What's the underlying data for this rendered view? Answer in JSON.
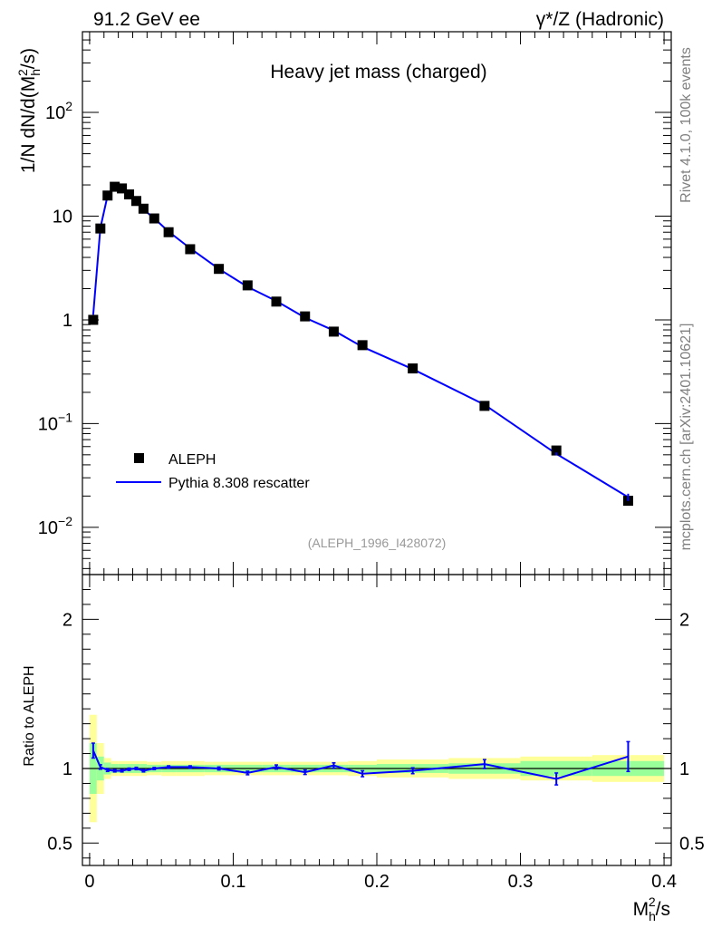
{
  "header": {
    "left": "91.2 GeV ee",
    "right_prefix": "γ*/Z",
    "right_suffix": " (Hadronic)"
  },
  "side_labels": {
    "rivet": "Rivet 4.1.0,  100k events",
    "source": "mcplots.cern.ch [arXiv:2401.10621]"
  },
  "colors": {
    "data": "#000000",
    "mc": "#0000ff",
    "band_inner": "#99ff99",
    "band_outer": "#ffff99",
    "watermark": "#999999",
    "side_text": "#808080"
  },
  "chart_data": {
    "type": "line",
    "title": "Heavy jet mass (charged)",
    "analysis_tag": "(ALEPH_1996_I428072)",
    "ylabel": "1/N  dN/d(M_h^2/s)",
    "ylabel_parts": {
      "prefix": "1/N   dN/d(M",
      "sub": "h",
      "sup": "2",
      "suffix": "/s)"
    },
    "xlabel": "M_h^2/s",
    "xlabel_parts": {
      "base": "M",
      "sub": "h",
      "sup": "2",
      "suffix": "/s"
    },
    "xlim": [
      -0.005,
      0.405
    ],
    "ylim_main": [
      0.0035,
      600
    ],
    "y_scale_main": "log",
    "ylim_ratio": [
      0.35,
      2.3
    ],
    "ratio_ylabel": "Ratio to ALEPH",
    "x_ticks": [
      0,
      0.1,
      0.2,
      0.3,
      0.4
    ],
    "x_tick_labels": [
      "0",
      "0.1",
      "0.2",
      "0.3",
      "0.4"
    ],
    "y_ticks_main": [
      {
        "value": 0.01,
        "base": "10",
        "exp": "−2"
      },
      {
        "value": 0.1,
        "base": "10",
        "exp": "−1"
      },
      {
        "value": 1,
        "base": "1",
        "exp": ""
      },
      {
        "value": 10,
        "base": "10",
        "exp": ""
      },
      {
        "value": 100,
        "base": "10",
        "exp": "2"
      }
    ],
    "y_ticks_ratio": [
      {
        "value": 0.5,
        "label": "0.5"
      },
      {
        "value": 1,
        "label": "1"
      },
      {
        "value": 2,
        "label": "2"
      }
    ],
    "legend": [
      {
        "label": "ALEPH",
        "marker": "square"
      },
      {
        "label": "Pythia 8.308 rescatter",
        "marker": "line"
      }
    ],
    "x": [
      0.0025,
      0.0075,
      0.0125,
      0.0175,
      0.0225,
      0.0275,
      0.0325,
      0.0375,
      0.045,
      0.055,
      0.07,
      0.09,
      0.11,
      0.13,
      0.15,
      0.17,
      0.19,
      0.225,
      0.275,
      0.325,
      0.375
    ],
    "x_lo": [
      0.0,
      0.005,
      0.01,
      0.015,
      0.02,
      0.025,
      0.03,
      0.035,
      0.04,
      0.05,
      0.06,
      0.08,
      0.1,
      0.12,
      0.14,
      0.16,
      0.18,
      0.2,
      0.25,
      0.3,
      0.35
    ],
    "x_hi": [
      0.005,
      0.01,
      0.015,
      0.02,
      0.025,
      0.03,
      0.035,
      0.04,
      0.05,
      0.06,
      0.08,
      0.1,
      0.12,
      0.14,
      0.16,
      0.18,
      0.2,
      0.25,
      0.3,
      0.35,
      0.4
    ],
    "series": [
      {
        "name": "ALEPH",
        "values": [
          1.0,
          7.6,
          15.8,
          19.2,
          18.5,
          16.2,
          14.0,
          11.8,
          9.5,
          7.0,
          4.8,
          3.1,
          2.15,
          1.5,
          1.08,
          0.77,
          0.57,
          0.34,
          0.148,
          0.055,
          0.018
        ]
      },
      {
        "name": "Pythia 8.308 rescatter",
        "values": [
          1.12,
          7.7,
          15.7,
          18.9,
          18.2,
          16.1,
          14.0,
          11.6,
          9.5,
          7.1,
          4.9,
          3.1,
          2.08,
          1.52,
          1.05,
          0.79,
          0.55,
          0.335,
          0.152,
          0.051,
          0.0195
        ],
        "ratio": [
          1.12,
          1.01,
          0.99,
          0.985,
          0.985,
          0.995,
          1.0,
          0.985,
          1.0,
          1.01,
          1.01,
          1.0,
          0.97,
          1.01,
          0.975,
          1.02,
          0.965,
          0.985,
          1.03,
          0.93,
          1.08
        ],
        "ratio_err": [
          0.05,
          0.015,
          0.01,
          0.008,
          0.008,
          0.008,
          0.008,
          0.008,
          0.007,
          0.008,
          0.008,
          0.01,
          0.012,
          0.014,
          0.015,
          0.018,
          0.02,
          0.02,
          0.03,
          0.04,
          0.1
        ]
      }
    ],
    "ratio_band_inner": [
      0.17,
      0.08,
      0.04,
      0.03,
      0.03,
      0.03,
      0.03,
      0.03,
      0.025,
      0.025,
      0.025,
      0.025,
      0.025,
      0.025,
      0.025,
      0.025,
      0.025,
      0.03,
      0.035,
      0.05,
      0.05
    ],
    "ratio_band_outer": [
      0.36,
      0.17,
      0.07,
      0.05,
      0.05,
      0.05,
      0.05,
      0.05,
      0.045,
      0.05,
      0.05,
      0.045,
      0.045,
      0.045,
      0.045,
      0.045,
      0.05,
      0.06,
      0.07,
      0.08,
      0.09
    ]
  }
}
